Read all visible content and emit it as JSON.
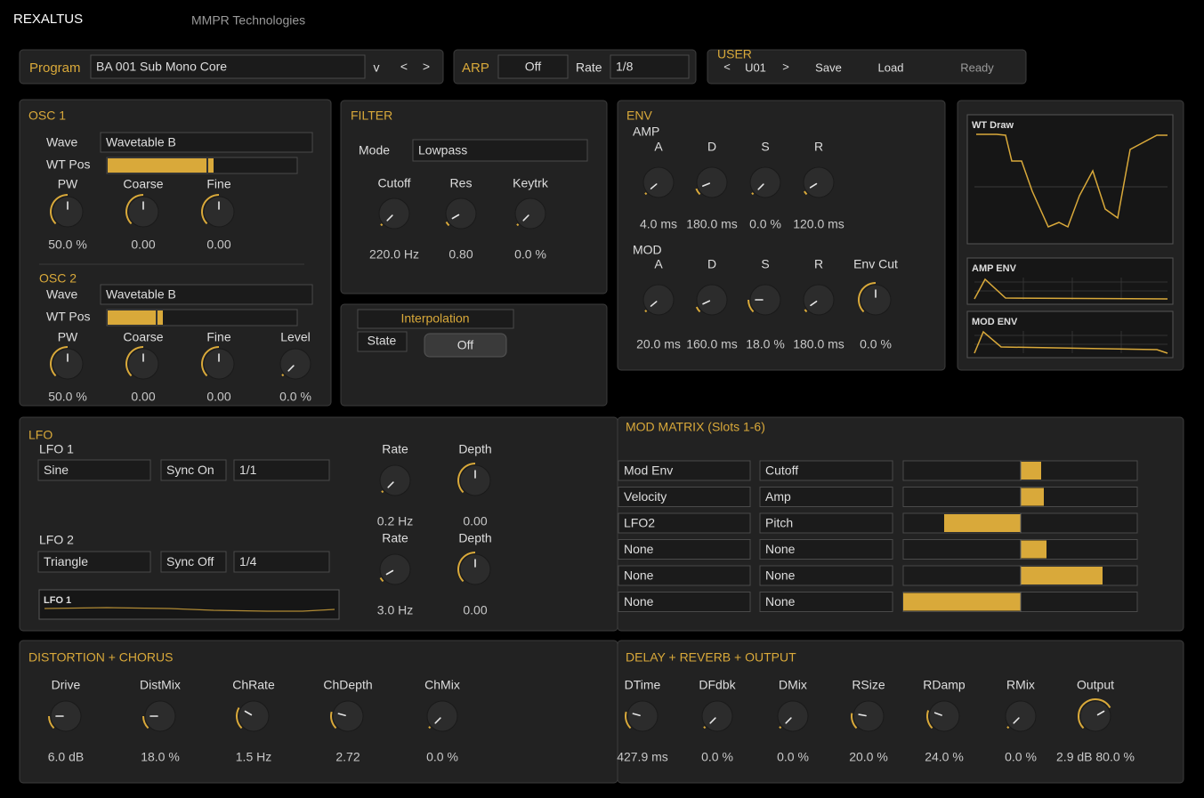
{
  "header": {
    "title": "REXALTUS",
    "company": "MMPR Technologies"
  },
  "program_bar": {
    "label": "Program",
    "name": "BA 001 Sub Mono Core",
    "menu": "v",
    "prev": "<",
    "next": ">"
  },
  "arp_bar": {
    "label": "ARP",
    "state": "Off",
    "rate_label": "Rate",
    "rate": "1/8"
  },
  "user_bar": {
    "label": "USER",
    "prev": "<",
    "slot": "U01",
    "next": ">",
    "save": "Save",
    "load": "Load",
    "status": "Ready"
  },
  "osc1": {
    "title": "OSC 1",
    "wave_label": "Wave",
    "wave": "Wavetable B",
    "wtpos_label": "WT Pos",
    "knobs": [
      {
        "label": "PW",
        "value": "50.0 %"
      },
      {
        "label": "Coarse",
        "value": "0.00"
      },
      {
        "label": "Fine",
        "value": "0.00"
      }
    ]
  },
  "osc2": {
    "title": "OSC 2",
    "wave_label": "Wave",
    "wave": "Wavetable B",
    "wtpos_label": "WT Pos",
    "knobs": [
      {
        "label": "PW",
        "value": "50.0 %"
      },
      {
        "label": "Coarse",
        "value": "0.00"
      },
      {
        "label": "Fine",
        "value": "0.00"
      },
      {
        "label": "Level",
        "value": "0.0 %"
      }
    ]
  },
  "filter": {
    "title": "FILTER",
    "mode_label": "Mode",
    "mode": "Lowpass",
    "knobs": [
      {
        "label": "Cutoff",
        "value": "220.0 Hz"
      },
      {
        "label": "Res",
        "value": "0.80"
      },
      {
        "label": "Keytrk",
        "value": "0.0 %"
      }
    ]
  },
  "interpolation": {
    "title": "Interpolation",
    "state_label": "State",
    "state": "Off"
  },
  "env": {
    "title": "ENV",
    "amp_label": "AMP",
    "amp_knobs": [
      {
        "label": "A",
        "value": "4.0 ms"
      },
      {
        "label": "D",
        "value": "180.0 ms"
      },
      {
        "label": "S",
        "value": "0.0 %"
      },
      {
        "label": "R",
        "value": "120.0 ms"
      }
    ],
    "mod_label": "MOD",
    "mod_knobs": [
      {
        "label": "A",
        "value": "20.0 ms"
      },
      {
        "label": "D",
        "value": "160.0 ms"
      },
      {
        "label": "S",
        "value": "18.0 %"
      },
      {
        "label": "R",
        "value": "180.0 ms"
      },
      {
        "label": "Env Cut",
        "value": "0.0 %"
      }
    ]
  },
  "displays": {
    "wt_draw": "WT Draw",
    "amp_env": "AMP ENV",
    "mod_env": "MOD ENV"
  },
  "lfo": {
    "title": "LFO",
    "lfo1": {
      "label": "LFO 1",
      "shape": "Sine",
      "sync": "Sync On",
      "division": "1/1",
      "knobs": [
        {
          "label": "Rate",
          "value": "0.2 Hz"
        },
        {
          "label": "Depth",
          "value": "0.00"
        }
      ]
    },
    "lfo2": {
      "label": "LFO 2",
      "shape": "Triangle",
      "sync": "Sync Off",
      "division": "1/4",
      "knobs": [
        {
          "label": "Rate",
          "value": "3.0 Hz"
        },
        {
          "label": "Depth",
          "value": "0.00"
        }
      ]
    },
    "scope_label": "LFO 1"
  },
  "mod_matrix": {
    "title": "MOD MATRIX (Slots 1-6)",
    "rows": [
      [
        "Mod Env",
        "Cutoff"
      ],
      [
        "Velocity",
        "Amp"
      ],
      [
        "LFO2",
        "Pitch"
      ],
      [
        "None",
        "None"
      ],
      [
        "None",
        "None"
      ],
      [
        "None",
        "None"
      ]
    ]
  },
  "dist_chorus": {
    "title": "DISTORTION + CHORUS",
    "knobs": [
      {
        "label": "Drive",
        "value": "6.0 dB"
      },
      {
        "label": "DistMix",
        "value": "18.0 %"
      },
      {
        "label": "ChRate",
        "value": "1.5 Hz"
      },
      {
        "label": "ChDepth",
        "value": "2.72"
      },
      {
        "label": "ChMix",
        "value": "0.0 %"
      }
    ]
  },
  "delay_reverb": {
    "title": "DELAY + REVERB + OUTPUT",
    "knobs": [
      {
        "label": "DTime",
        "value": "427.9 ms"
      },
      {
        "label": "DFdbk",
        "value": "0.0 %"
      },
      {
        "label": "DMix",
        "value": "0.0 %"
      },
      {
        "label": "RSize",
        "value": "20.0 %"
      },
      {
        "label": "RDamp",
        "value": "24.0 %"
      },
      {
        "label": "RMix",
        "value": "0.0 %"
      },
      {
        "label": "Output",
        "value": "2.9 dB 80.0 %"
      }
    ]
  }
}
